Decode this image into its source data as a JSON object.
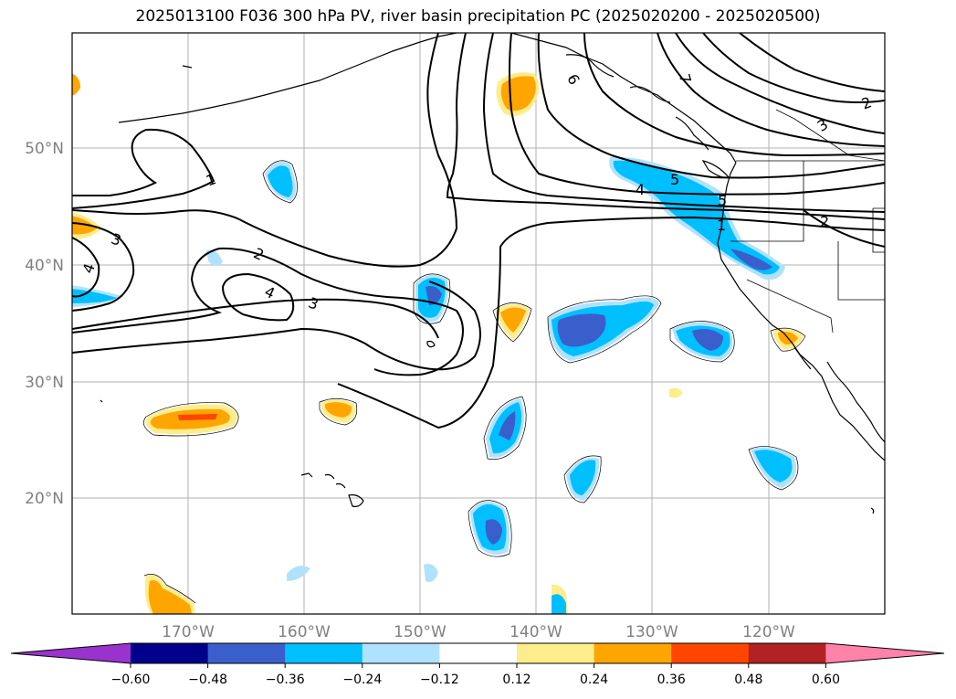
{
  "title": "2025013100 F036 300 hPa PV, river basin precipitation PC (2025020200 - 2025020500)",
  "map": {
    "lat_labels": [
      "50°N",
      "40°N",
      "30°N",
      "20°N"
    ],
    "lon_labels": [
      "170°W",
      "160°W",
      "150°W",
      "140°W",
      "130°W",
      "120°W"
    ],
    "pv_contour_labels": [
      "1",
      "2",
      "3",
      "4",
      "5",
      "6",
      "7",
      "1",
      "2",
      "3",
      "4",
      "5",
      "2",
      "3",
      "4"
    ],
    "colors": {
      "coast": "#000000",
      "grid": "#b0b0b0",
      "pv_contour": "#000000"
    }
  },
  "colorbar": {
    "ticks": [
      "−0.60",
      "−0.48",
      "−0.36",
      "−0.24",
      "−0.12",
      "0.12",
      "0.24",
      "0.36",
      "0.48",
      "0.60"
    ],
    "colors": [
      "#9a32cd",
      "#00008b",
      "#3a5fcd",
      "#00bfff",
      "#b0e2ff",
      "#ffffff",
      "#ffec8b",
      "#ffa500",
      "#ff4500",
      "#b22222",
      "#ff82ab"
    ]
  }
}
